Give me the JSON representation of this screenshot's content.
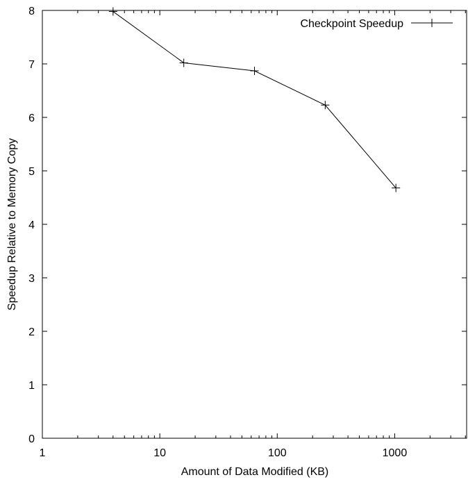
{
  "chart_data": {
    "type": "line",
    "xscale": "log",
    "xlim": [
      1,
      4096
    ],
    "ylim": [
      0,
      8
    ],
    "xlabel": "Amount of Data Modified (KB)",
    "ylabel": "Speedup Relative to Memory Copy",
    "x_ticks": [
      1,
      10,
      100,
      1000
    ],
    "x_tick_labels": [
      "1",
      "10",
      "100",
      "1000"
    ],
    "y_ticks": [
      0,
      1,
      2,
      3,
      4,
      5,
      6,
      7,
      8
    ],
    "y_tick_labels": [
      "0",
      "1",
      "2",
      "3",
      "4",
      "5",
      "6",
      "7",
      "8"
    ],
    "grid": false,
    "legend_position": "top-right",
    "series": [
      {
        "name": "Checkpoint Speedup",
        "marker": "plus",
        "color": "#000000",
        "x": [
          4,
          16,
          64,
          256,
          1024
        ],
        "y": [
          7.98,
          7.02,
          6.87,
          6.23,
          4.68
        ]
      }
    ]
  }
}
